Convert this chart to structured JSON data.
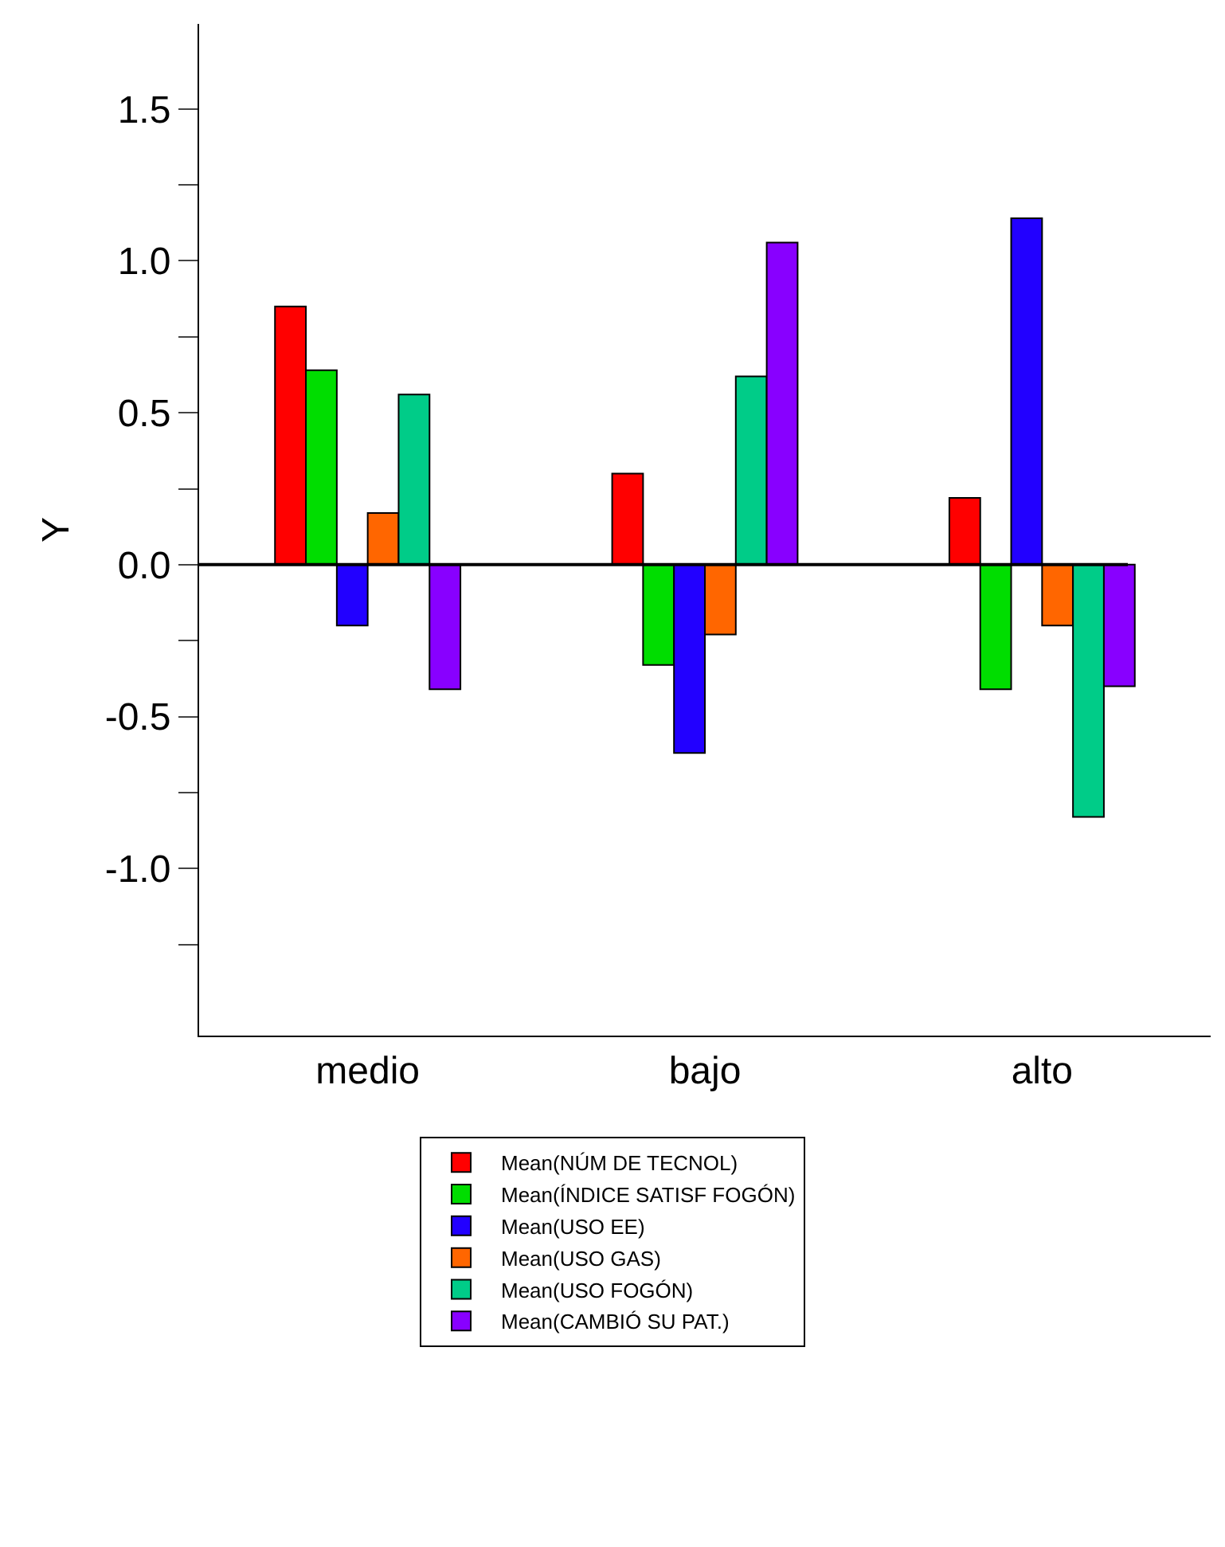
{
  "chart_data": {
    "type": "bar",
    "ylabel": "Y",
    "categories": [
      "medio",
      "bajo",
      "alto"
    ],
    "series": [
      {
        "name": "Mean(NÚM DE TECNOL)",
        "color": "#ff0000",
        "values": [
          0.85,
          0.3,
          0.22
        ]
      },
      {
        "name": "Mean(ÍNDICE SATISF FOGÓN)",
        "color": "#00dd00",
        "values": [
          0.64,
          -0.33,
          -0.41
        ]
      },
      {
        "name": "Mean(USO EE)",
        "color": "#2200ff",
        "values": [
          -0.2,
          -0.62,
          1.14
        ]
      },
      {
        "name": "Mean(USO GAS)",
        "color": "#ff6600",
        "values": [
          0.17,
          -0.23,
          -0.2
        ]
      },
      {
        "name": "Mean(USO FOGÓN)",
        "color": "#00cc88",
        "values": [
          0.56,
          0.62,
          -0.83
        ]
      },
      {
        "name": "Mean(CAMBIÓ SU PAT.)",
        "color": "#8800ff",
        "values": [
          -0.41,
          1.06,
          -0.4
        ]
      }
    ],
    "ylim": [
      -1.55,
      1.78
    ],
    "yticks": [
      {
        "value": -1.25,
        "label": null
      },
      "-1.0",
      {
        "value": -0.75,
        "label": null
      },
      {
        "value": -0.5,
        "label": "-0.5"
      },
      {
        "value": -0.25,
        "label": null
      },
      {
        "value": 0,
        "label": "0.0"
      },
      {
        "value": 0.25,
        "label": null
      },
      {
        "value": 0.5,
        "label": "0.5"
      },
      {
        "value": 0.75,
        "label": null
      },
      {
        "value": 1.0,
        "label": "1.0"
      },
      {
        "value": 1.25,
        "label": null
      },
      {
        "value": 1.5,
        "label": "1.5"
      }
    ],
    "ref_lines": [
      {
        "axis": "y",
        "value": 0,
        "color": "#000000"
      }
    ],
    "legend": "bottom"
  }
}
